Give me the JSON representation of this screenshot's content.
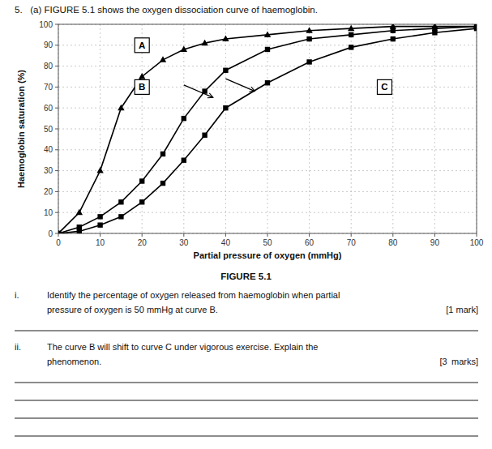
{
  "chart_data": {
    "type": "line",
    "title": "5.   (a) FIGURE 5.1 shows the oxygen dissociation curve of haemoglobin.",
    "caption": "FIGURE 5.1",
    "xlabel": "Partial pressure of oxygen (mmHg)",
    "ylabel": "Haemoglobin saturation (%)",
    "xlim": [
      0,
      100
    ],
    "ylim": [
      0,
      100
    ],
    "xticks": [
      0,
      10,
      20,
      30,
      40,
      50,
      60,
      70,
      80,
      90,
      100
    ],
    "yticks": [
      0,
      10,
      20,
      30,
      40,
      50,
      60,
      70,
      80,
      90,
      100
    ],
    "grid": true,
    "x": [
      0,
      5,
      10,
      15,
      20,
      25,
      30,
      35,
      40,
      50,
      60,
      70,
      80,
      90,
      100
    ],
    "series": [
      {
        "name": "A",
        "color": "#000000",
        "marker": "triangle",
        "label_x": 20,
        "label_y": 90,
        "values": [
          0,
          10,
          30,
          60,
          75,
          83,
          88,
          91,
          93,
          95,
          97,
          98,
          99,
          99,
          99
        ]
      },
      {
        "name": "B",
        "color": "#000000",
        "marker": "square",
        "label_x": 20,
        "label_y": 70,
        "values": [
          0,
          3,
          8,
          15,
          25,
          38,
          55,
          68,
          78,
          88,
          93,
          95,
          97,
          98,
          99
        ]
      },
      {
        "name": "C",
        "color": "#000000",
        "marker": "square",
        "label_x": 78,
        "label_y": 70,
        "values": [
          0,
          1,
          4,
          8,
          15,
          24,
          35,
          47,
          60,
          72,
          82,
          89,
          93,
          96,
          98
        ]
      }
    ],
    "arrows": [
      {
        "x_from": 30,
        "y_from": 71,
        "x": 37,
        "y": 65
      },
      {
        "x_from": 40,
        "y_from": 74,
        "x": 47,
        "y": 68
      }
    ],
    "annotations": [
      {
        "number": "i.",
        "lines": [
          "Identify the percentage of oxygen released from haemoglobin when partial",
          "pressure of oxygen is 50 mmHg at curve B."
        ],
        "marks": "[1 mark]"
      },
      {
        "number": "ii.",
        "lines": [
          "The curve B will shift to curve C under vigorous exercise. Explain the",
          "phenomenon."
        ],
        "marks": "[3  marks]"
      }
    ]
  }
}
